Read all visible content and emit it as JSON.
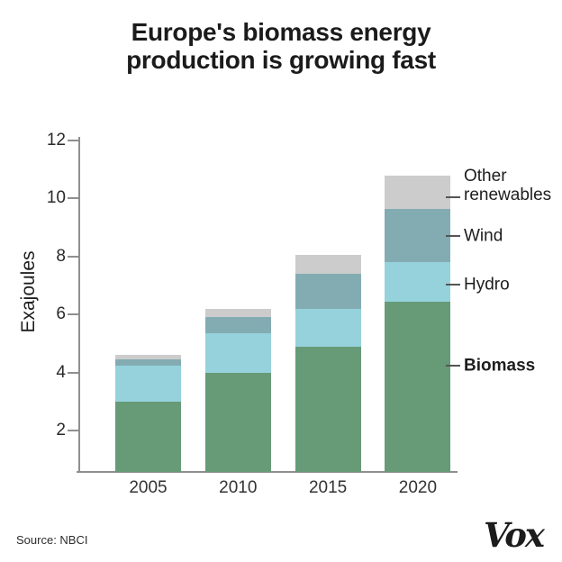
{
  "title": {
    "line1": "Europe's biomass energy",
    "line2": "production is growing fast"
  },
  "source": "Source: NBCI",
  "logo_text": "Vox",
  "chart_data": {
    "type": "bar",
    "stacked": true,
    "title": "Europe's biomass energy production is growing fast",
    "categories": [
      "2005",
      "2010",
      "2015",
      "2020"
    ],
    "series": [
      {
        "name": "Biomass",
        "color": "#679a77",
        "values": [
          3.0,
          4.0,
          4.9,
          6.45
        ]
      },
      {
        "name": "Hydro",
        "color": "#95d2dc",
        "values": [
          1.25,
          1.35,
          1.3,
          1.35
        ]
      },
      {
        "name": "Wind",
        "color": "#83acb2",
        "values": [
          0.2,
          0.55,
          1.2,
          1.85
        ]
      },
      {
        "name": "Other renewables",
        "color": "#cccccc",
        "values": [
          0.15,
          0.3,
          0.65,
          1.15
        ]
      }
    ],
    "totals": [
      4.6,
      6.2,
      8.05,
      10.8
    ],
    "xlabel": "",
    "ylabel": "Exajoules",
    "yticks": [
      2,
      4,
      6,
      8,
      10,
      12
    ],
    "ylim": [
      0,
      12
    ],
    "grid": false,
    "legend_position": "right-annotations",
    "annotations": [
      {
        "label": "Other renewables",
        "bold": false
      },
      {
        "label": "Wind",
        "bold": false
      },
      {
        "label": "Hydro",
        "bold": false
      },
      {
        "label": "Biomass",
        "bold": true
      }
    ],
    "axis_color": "#8f8f8f"
  }
}
